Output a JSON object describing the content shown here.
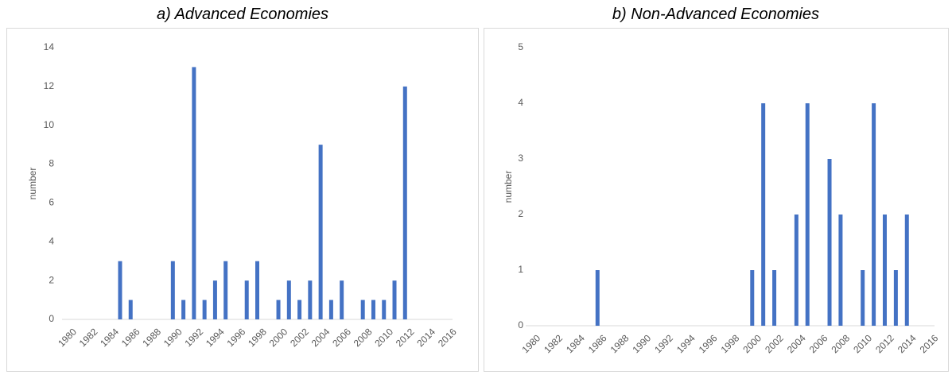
{
  "chart_data": [
    {
      "type": "bar",
      "title": "a)   Advanced Economies",
      "y_label": "number",
      "color": "#4472c4",
      "categories": [
        "1980",
        null,
        "1982",
        null,
        "1984",
        null,
        "1986",
        null,
        "1988",
        null,
        "1990",
        null,
        "1992",
        null,
        "1994",
        null,
        "1996",
        null,
        "1998",
        null,
        "2000",
        null,
        "2002",
        null,
        "2004",
        null,
        "2006",
        null,
        "2008",
        null,
        "2010",
        null,
        "2012",
        null,
        "2014",
        null,
        "2016"
      ],
      "values": [
        0,
        0,
        0,
        0,
        0,
        3,
        1,
        0,
        0,
        0,
        3,
        1,
        13,
        1,
        2,
        3,
        0,
        2,
        3,
        0,
        1,
        2,
        1,
        2,
        9,
        1,
        2,
        0,
        1,
        1,
        1,
        2,
        12,
        0,
        0,
        0,
        0
      ],
      "ylim": [
        0,
        14
      ],
      "yticks": [
        0,
        2,
        4,
        6,
        8,
        10,
        12,
        14
      ],
      "grid": false
    },
    {
      "type": "bar",
      "title": "b)   Non-Advanced Economies",
      "y_label": "number",
      "color": "#4472c4",
      "categories": [
        "1980",
        null,
        "1982",
        null,
        "1984",
        null,
        "1986",
        null,
        "1988",
        null,
        "1990",
        null,
        "1992",
        null,
        "1994",
        null,
        "1996",
        null,
        "1998",
        null,
        "2000",
        null,
        "2002",
        null,
        "2004",
        null,
        "2006",
        null,
        "2008",
        null,
        "2010",
        null,
        "2012",
        null,
        "2014",
        null,
        "2016"
      ],
      "values": [
        0,
        0,
        0,
        0,
        0,
        0,
        1,
        0,
        0,
        0,
        0,
        0,
        0,
        0,
        0,
        0,
        0,
        0,
        0,
        0,
        1,
        4,
        1,
        0,
        2,
        4,
        0,
        3,
        2,
        0,
        1,
        4,
        2,
        1,
        2,
        0,
        0
      ],
      "ylim": [
        0,
        5
      ],
      "yticks": [
        0,
        1,
        2,
        3,
        4,
        5
      ],
      "grid": false
    }
  ]
}
